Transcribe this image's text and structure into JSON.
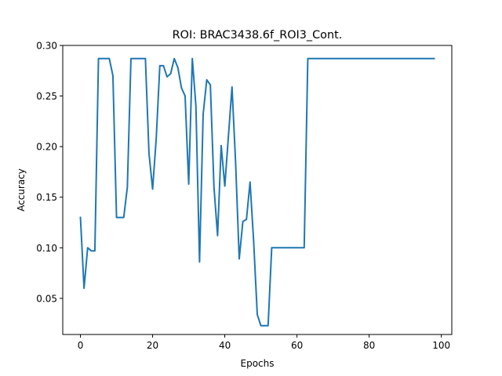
{
  "chart_data": {
    "type": "line",
    "title": "ROI: BRAC3438.6f_ROI3_Cont.",
    "xlabel": "Epochs",
    "ylabel": "Accuracy",
    "xlim": [
      -4.9,
      102.9
    ],
    "ylim": [
      0.0143,
      0.3
    ],
    "xticks": [
      0,
      20,
      40,
      60,
      80,
      100
    ],
    "yticks": [
      0.05,
      0.1,
      0.15,
      0.2,
      0.25,
      0.3
    ],
    "xtick_labels": [
      "0",
      "20",
      "40",
      "60",
      "80",
      "100"
    ],
    "ytick_labels": [
      "0.05",
      "0.10",
      "0.15",
      "0.20",
      "0.25",
      "0.30"
    ],
    "grid": false,
    "line_color": "#1f77b4",
    "series": [
      {
        "x": [
          0,
          1,
          2,
          3,
          4,
          5,
          6,
          7,
          8,
          9,
          10,
          11,
          12,
          13,
          14,
          15,
          16,
          17,
          18,
          19,
          20,
          21,
          22,
          23,
          24,
          25,
          26,
          27,
          28,
          29,
          30,
          31,
          32,
          33,
          34,
          35,
          36,
          37,
          38,
          39,
          40,
          41,
          42,
          43,
          44,
          45,
          46,
          47,
          48,
          49,
          50,
          51,
          52,
          53,
          54,
          55,
          56,
          57,
          58,
          59,
          60,
          61,
          62,
          63,
          64,
          65,
          66,
          67,
          68,
          69,
          70,
          71,
          72,
          73,
          74,
          75,
          76,
          77,
          78,
          79,
          80,
          81,
          82,
          83,
          84,
          85,
          86,
          87,
          88,
          89,
          90,
          91,
          92,
          93,
          94,
          95,
          96,
          97,
          98
        ],
        "y": [
          0.13,
          0.06,
          0.1,
          0.097,
          0.097,
          0.287,
          0.287,
          0.287,
          0.287,
          0.27,
          0.13,
          0.13,
          0.13,
          0.16,
          0.287,
          0.287,
          0.287,
          0.287,
          0.287,
          0.193,
          0.158,
          0.208,
          0.28,
          0.28,
          0.269,
          0.272,
          0.287,
          0.278,
          0.258,
          0.25,
          0.163,
          0.287,
          0.24,
          0.086,
          0.232,
          0.266,
          0.261,
          0.16,
          0.112,
          0.201,
          0.161,
          0.21,
          0.259,
          0.184,
          0.089,
          0.126,
          0.128,
          0.165,
          0.106,
          0.034,
          0.023,
          0.023,
          0.023,
          0.1,
          0.1,
          0.1,
          0.1,
          0.1,
          0.1,
          0.1,
          0.1,
          0.1,
          0.1,
          0.287,
          0.287,
          0.287,
          0.287,
          0.287,
          0.287,
          0.287,
          0.287,
          0.287,
          0.287,
          0.287,
          0.287,
          0.287,
          0.287,
          0.287,
          0.287,
          0.287,
          0.287,
          0.287,
          0.287,
          0.287,
          0.287,
          0.287,
          0.287,
          0.287,
          0.287,
          0.287,
          0.287,
          0.287,
          0.287,
          0.287,
          0.287,
          0.287,
          0.287,
          0.287,
          0.287
        ]
      }
    ]
  }
}
